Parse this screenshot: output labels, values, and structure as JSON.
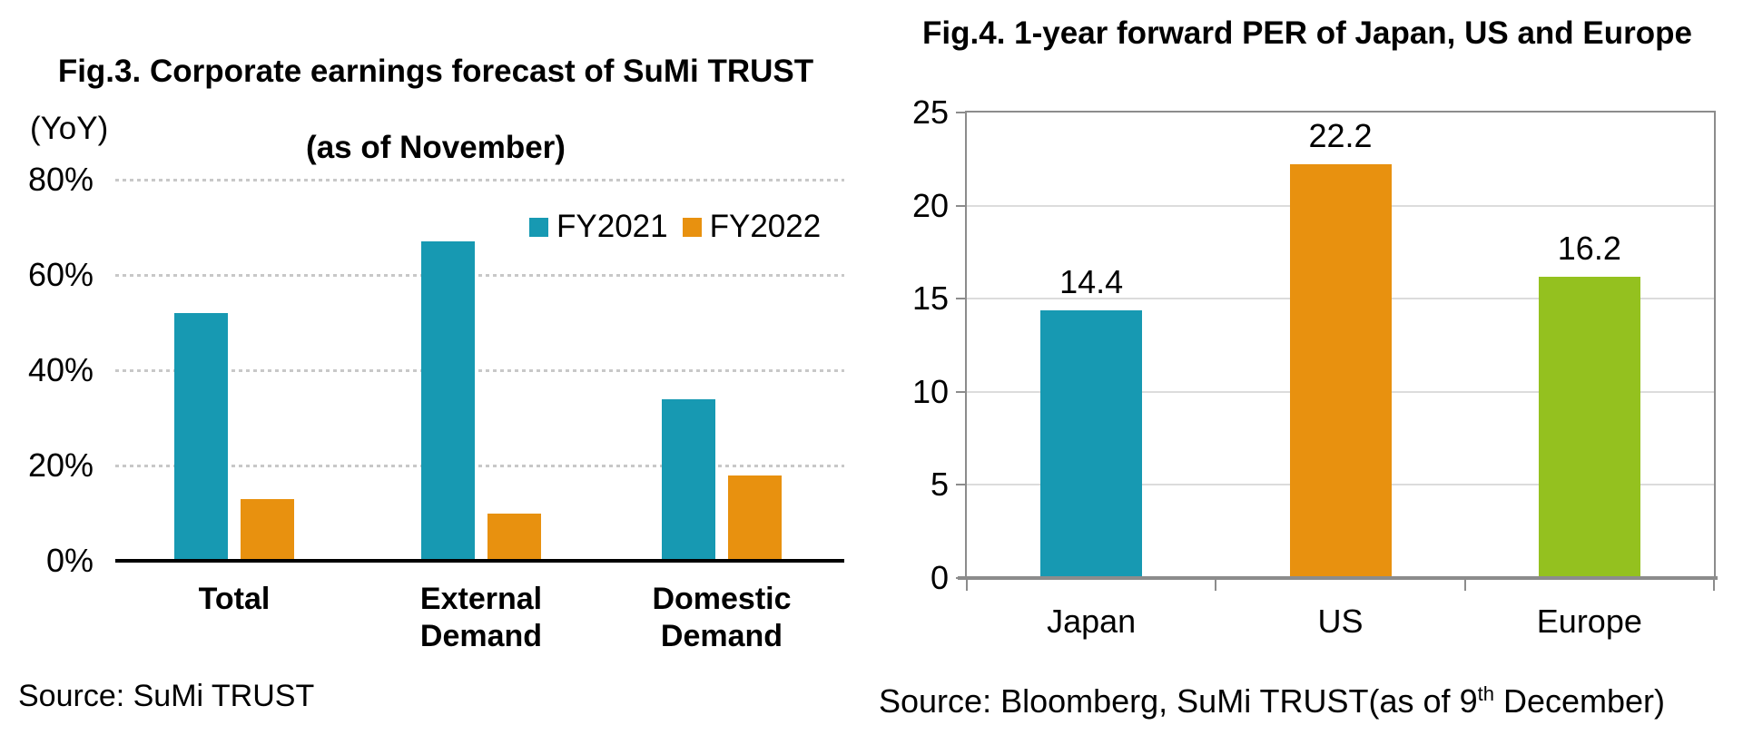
{
  "chart_data": [
    {
      "type": "bar",
      "title": "Fig.3. Corporate earnings forecast of SuMi TRUST (as of November)",
      "title_lines": [
        "Fig.3. Corporate earnings forecast of SuMi TRUST",
        "(as of November)"
      ],
      "unit_label": "(YoY)",
      "categories": [
        "Total",
        "External Demand",
        "Domestic Demand"
      ],
      "series": [
        {
          "name": "FY2021",
          "color": "#1799B2",
          "values": [
            52,
            67,
            34
          ]
        },
        {
          "name": "FY2022",
          "color": "#E8910F",
          "values": [
            13,
            10,
            18
          ]
        }
      ],
      "ylabel": "(YoY)",
      "ylim": [
        0,
        80
      ],
      "ytick_step": 20,
      "ytick_suffix": "%",
      "grid": "dotted-horizontal",
      "legend_position": "inside-top-right",
      "source": "Source: SuMi TRUST"
    },
    {
      "type": "bar",
      "title": "Fig.4. 1-year forward PER of Japan, US and Europe",
      "categories": [
        "Japan",
        "US",
        "Europe"
      ],
      "values": [
        14.4,
        22.2,
        16.2
      ],
      "data_labels": [
        "14.4",
        "22.2",
        "16.2"
      ],
      "bar_colors": [
        "#1799B2",
        "#E8910F",
        "#94C11F"
      ],
      "ylim": [
        0,
        25
      ],
      "ytick_step": 5,
      "grid": "solid-horizontal",
      "source_prefix": "Source: Bloomberg, SuMi TRUST(as of 9",
      "source_sup": "th",
      "source_suffix": " December)"
    }
  ],
  "colors": {
    "fy2021_teal": "#1799B2",
    "fy2022_orange": "#E8910F",
    "europe_green": "#94C11F",
    "axis_gray": "#8C8C8C",
    "gridline_light": "#DCDCDC",
    "gridline_dotted": "#C8C8C8",
    "axis_black": "#000000"
  }
}
